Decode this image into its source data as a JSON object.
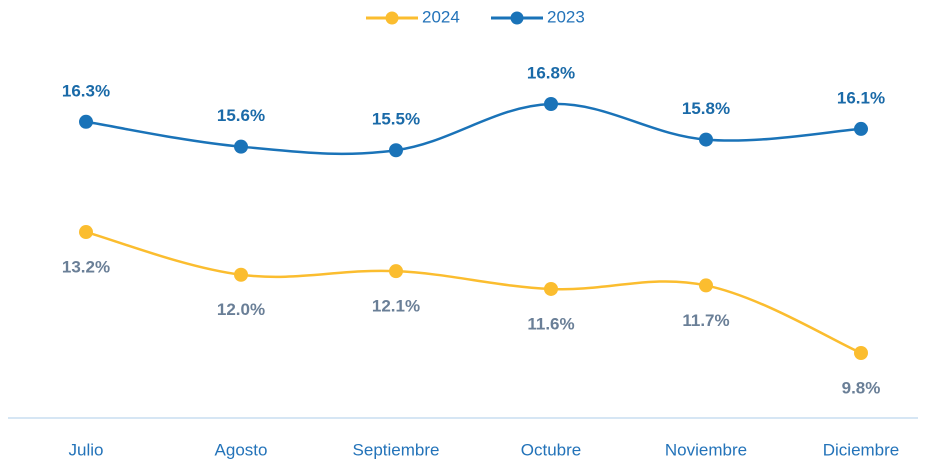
{
  "chart_data": {
    "type": "line",
    "categories": [
      "Julio",
      "Agosto",
      "Septiembre",
      "Octubre",
      "Noviembre",
      "Diciembre"
    ],
    "series": [
      {
        "name": "2024",
        "color": "#fbbd2f",
        "label_color": "#6a7f97",
        "values": [
          13.2,
          12.0,
          12.1,
          11.6,
          11.7,
          9.8
        ],
        "value_labels": [
          "13.2%",
          "12.0%",
          "12.1%",
          "11.6%",
          "11.7%",
          "9.8%"
        ]
      },
      {
        "name": "2023",
        "color": "#1a73b8",
        "label_color": "#1a6aa8",
        "values": [
          16.3,
          15.6,
          15.5,
          16.8,
          15.8,
          16.1
        ],
        "value_labels": [
          "16.3%",
          "15.6%",
          "15.5%",
          "16.8%",
          "15.8%",
          "16.1%"
        ]
      }
    ],
    "legend": "top"
  }
}
